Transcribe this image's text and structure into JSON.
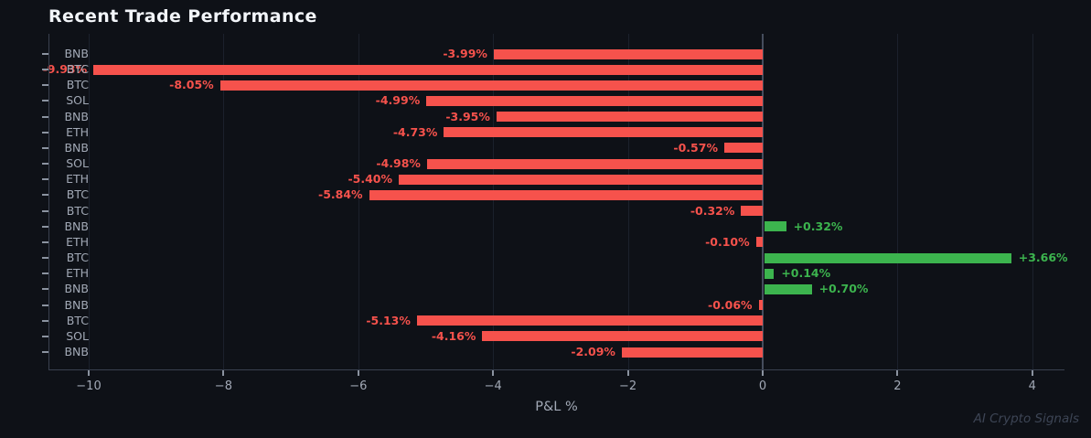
{
  "title": "Recent Trade Performance",
  "watermark": "AI Crypto Signals",
  "colors": {
    "background": "#0e1117",
    "negative": "#f6524c",
    "positive": "#3cb44e",
    "axis_text": "#a2a9b6",
    "title_text": "#f2f5f9",
    "spine": "#3a4150",
    "gridline": "#1b212c",
    "zero_line": "#454d5d",
    "watermark_text": "#3d4555"
  },
  "chart_data": {
    "type": "bar",
    "orientation": "horizontal",
    "title": "Recent Trade Performance",
    "xlabel": "P&L %",
    "ylabel": "",
    "categories": [
      "BNB",
      "BTC",
      "BTC",
      "SOL",
      "BNB",
      "ETH",
      "BNB",
      "SOL",
      "ETH",
      "BTC",
      "BTC",
      "BNB",
      "ETH",
      "BTC",
      "ETH",
      "BNB",
      "BNB",
      "BTC",
      "SOL",
      "BNB"
    ],
    "values": [
      -3.99,
      -9.93,
      -8.05,
      -4.99,
      -3.95,
      -4.73,
      -0.57,
      -4.98,
      -5.4,
      -5.84,
      -0.32,
      0.32,
      -0.1,
      3.66,
      0.14,
      0.7,
      -0.06,
      -5.13,
      -4.16,
      -2.09
    ],
    "bar_labels": [
      "-3.99%",
      "-9.93%",
      "-8.05%",
      "-4.99%",
      "-3.95%",
      "-4.73%",
      "-0.57%",
      "-4.98%",
      "-5.40%",
      "-5.84%",
      "-0.32%",
      "+0.32%",
      "-0.10%",
      "+3.66%",
      "+0.14%",
      "+0.70%",
      "-0.06%",
      "-5.13%",
      "-4.16%",
      "-2.09%"
    ],
    "x_ticks": [
      -10,
      -8,
      -6,
      -4,
      -2,
      0,
      2,
      4
    ],
    "x_tick_labels": [
      "−10",
      "−8",
      "−6",
      "−4",
      "−2",
      "0",
      "2",
      "4"
    ],
    "xlim": [
      -10.6,
      4.48
    ],
    "grid": true,
    "legend": false
  }
}
